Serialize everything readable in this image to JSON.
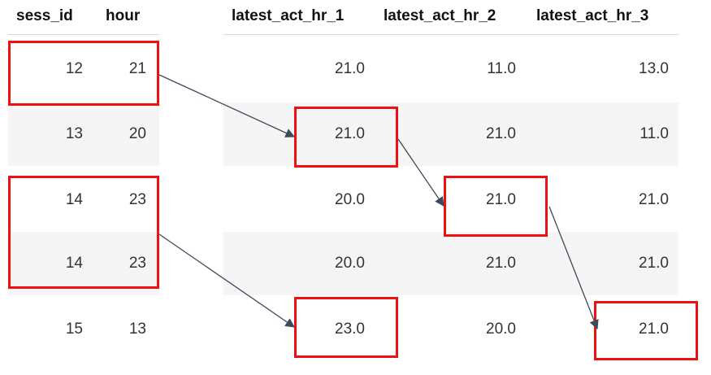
{
  "left_table": {
    "headers": [
      "sess_id",
      "hour"
    ],
    "rows": [
      [
        "12",
        "21"
      ],
      [
        "13",
        "20"
      ],
      [
        "14",
        "23"
      ],
      [
        "14",
        "23"
      ],
      [
        "15",
        "13"
      ]
    ]
  },
  "right_table": {
    "headers": [
      "latest_act_hr_1",
      "latest_act_hr_2",
      "latest_act_hr_3"
    ],
    "rows": [
      [
        "21.0",
        "11.0",
        "13.0"
      ],
      [
        "21.0",
        "21.0",
        "11.0"
      ],
      [
        "20.0",
        "21.0",
        "21.0"
      ],
      [
        "20.0",
        "21.0",
        "21.0"
      ],
      [
        "23.0",
        "20.0",
        "21.0"
      ]
    ]
  },
  "colors": {
    "highlight": "#ee1111",
    "arrow": "#3d4a5c",
    "stripe": "#f5f5f5"
  }
}
